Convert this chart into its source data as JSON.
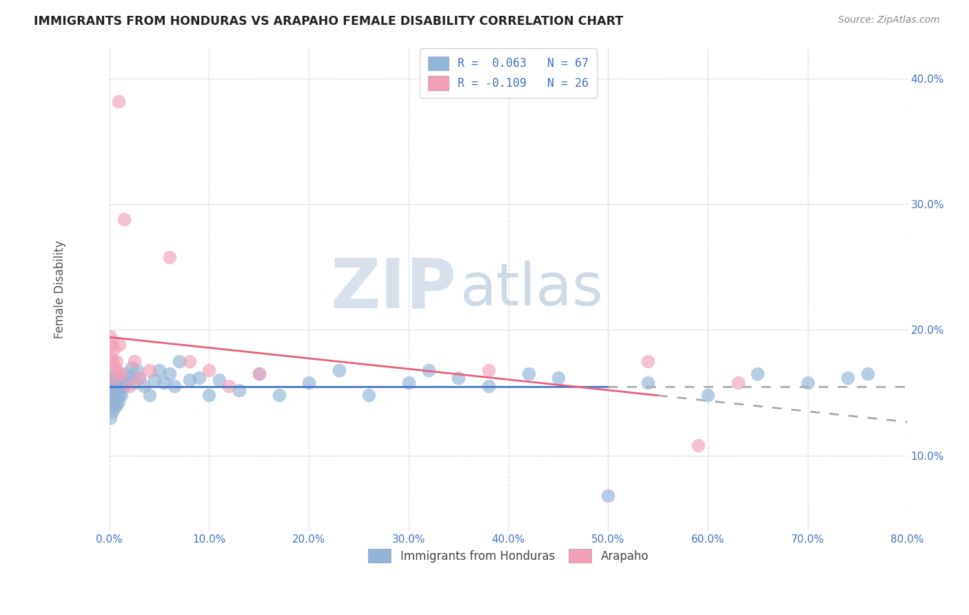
{
  "title": "IMMIGRANTS FROM HONDURAS VS ARAPAHO FEMALE DISABILITY CORRELATION CHART",
  "source": "Source: ZipAtlas.com",
  "ylabel": "Female Disability",
  "x_min": 0.0,
  "x_max": 0.8,
  "y_min": 0.04,
  "y_max": 0.425,
  "y_ticks": [
    0.1,
    0.2,
    0.3,
    0.4
  ],
  "x_ticks": [
    0.0,
    0.1,
    0.2,
    0.3,
    0.4,
    0.5,
    0.6,
    0.7,
    0.8
  ],
  "legend_label_blue": "R =  0.063   N = 67",
  "legend_label_pink": "R = -0.109   N = 26",
  "legend_labels_bottom": [
    "Immigrants from Honduras",
    "Arapaho"
  ],
  "blue_color": "#92b4d7",
  "pink_color": "#f2a0b8",
  "blue_line_color": "#4472c4",
  "pink_line_color": "#e8607a",
  "dash_color": "#aaaaaa",
  "watermark_zip": "ZIP",
  "watermark_atlas": "atlas",
  "blue_points_x": [
    0.001,
    0.001,
    0.001,
    0.002,
    0.002,
    0.002,
    0.003,
    0.003,
    0.003,
    0.004,
    0.004,
    0.005,
    0.005,
    0.005,
    0.006,
    0.006,
    0.007,
    0.007,
    0.007,
    0.008,
    0.008,
    0.009,
    0.009,
    0.01,
    0.01,
    0.011,
    0.012,
    0.013,
    0.015,
    0.016,
    0.018,
    0.02,
    0.022,
    0.025,
    0.028,
    0.03,
    0.035,
    0.04,
    0.045,
    0.05,
    0.055,
    0.06,
    0.065,
    0.07,
    0.08,
    0.09,
    0.1,
    0.11,
    0.13,
    0.15,
    0.17,
    0.2,
    0.23,
    0.26,
    0.3,
    0.32,
    0.35,
    0.38,
    0.42,
    0.45,
    0.5,
    0.54,
    0.6,
    0.65,
    0.7,
    0.74,
    0.76
  ],
  "blue_points_y": [
    0.13,
    0.145,
    0.155,
    0.14,
    0.15,
    0.16,
    0.135,
    0.148,
    0.158,
    0.142,
    0.162,
    0.138,
    0.15,
    0.165,
    0.145,
    0.155,
    0.14,
    0.152,
    0.162,
    0.148,
    0.158,
    0.143,
    0.155,
    0.15,
    0.162,
    0.155,
    0.148,
    0.16,
    0.155,
    0.165,
    0.158,
    0.162,
    0.17,
    0.158,
    0.168,
    0.162,
    0.155,
    0.148,
    0.16,
    0.168,
    0.158,
    0.165,
    0.155,
    0.175,
    0.16,
    0.162,
    0.148,
    0.16,
    0.152,
    0.165,
    0.148,
    0.158,
    0.168,
    0.148,
    0.158,
    0.168,
    0.162,
    0.155,
    0.165,
    0.162,
    0.068,
    0.158,
    0.148,
    0.165,
    0.158,
    0.162,
    0.165
  ],
  "pink_points_x": [
    0.001,
    0.001,
    0.002,
    0.003,
    0.004,
    0.005,
    0.006,
    0.007,
    0.008,
    0.009,
    0.01,
    0.012,
    0.015,
    0.02,
    0.025,
    0.03,
    0.04,
    0.06,
    0.08,
    0.1,
    0.12,
    0.15,
    0.38,
    0.54,
    0.59,
    0.63
  ],
  "pink_points_y": [
    0.195,
    0.178,
    0.188,
    0.175,
    0.185,
    0.17,
    0.162,
    0.175,
    0.168,
    0.382,
    0.188,
    0.165,
    0.288,
    0.155,
    0.175,
    0.162,
    0.168,
    0.258,
    0.175,
    0.168,
    0.155,
    0.165,
    0.168,
    0.175,
    0.108,
    0.158
  ]
}
